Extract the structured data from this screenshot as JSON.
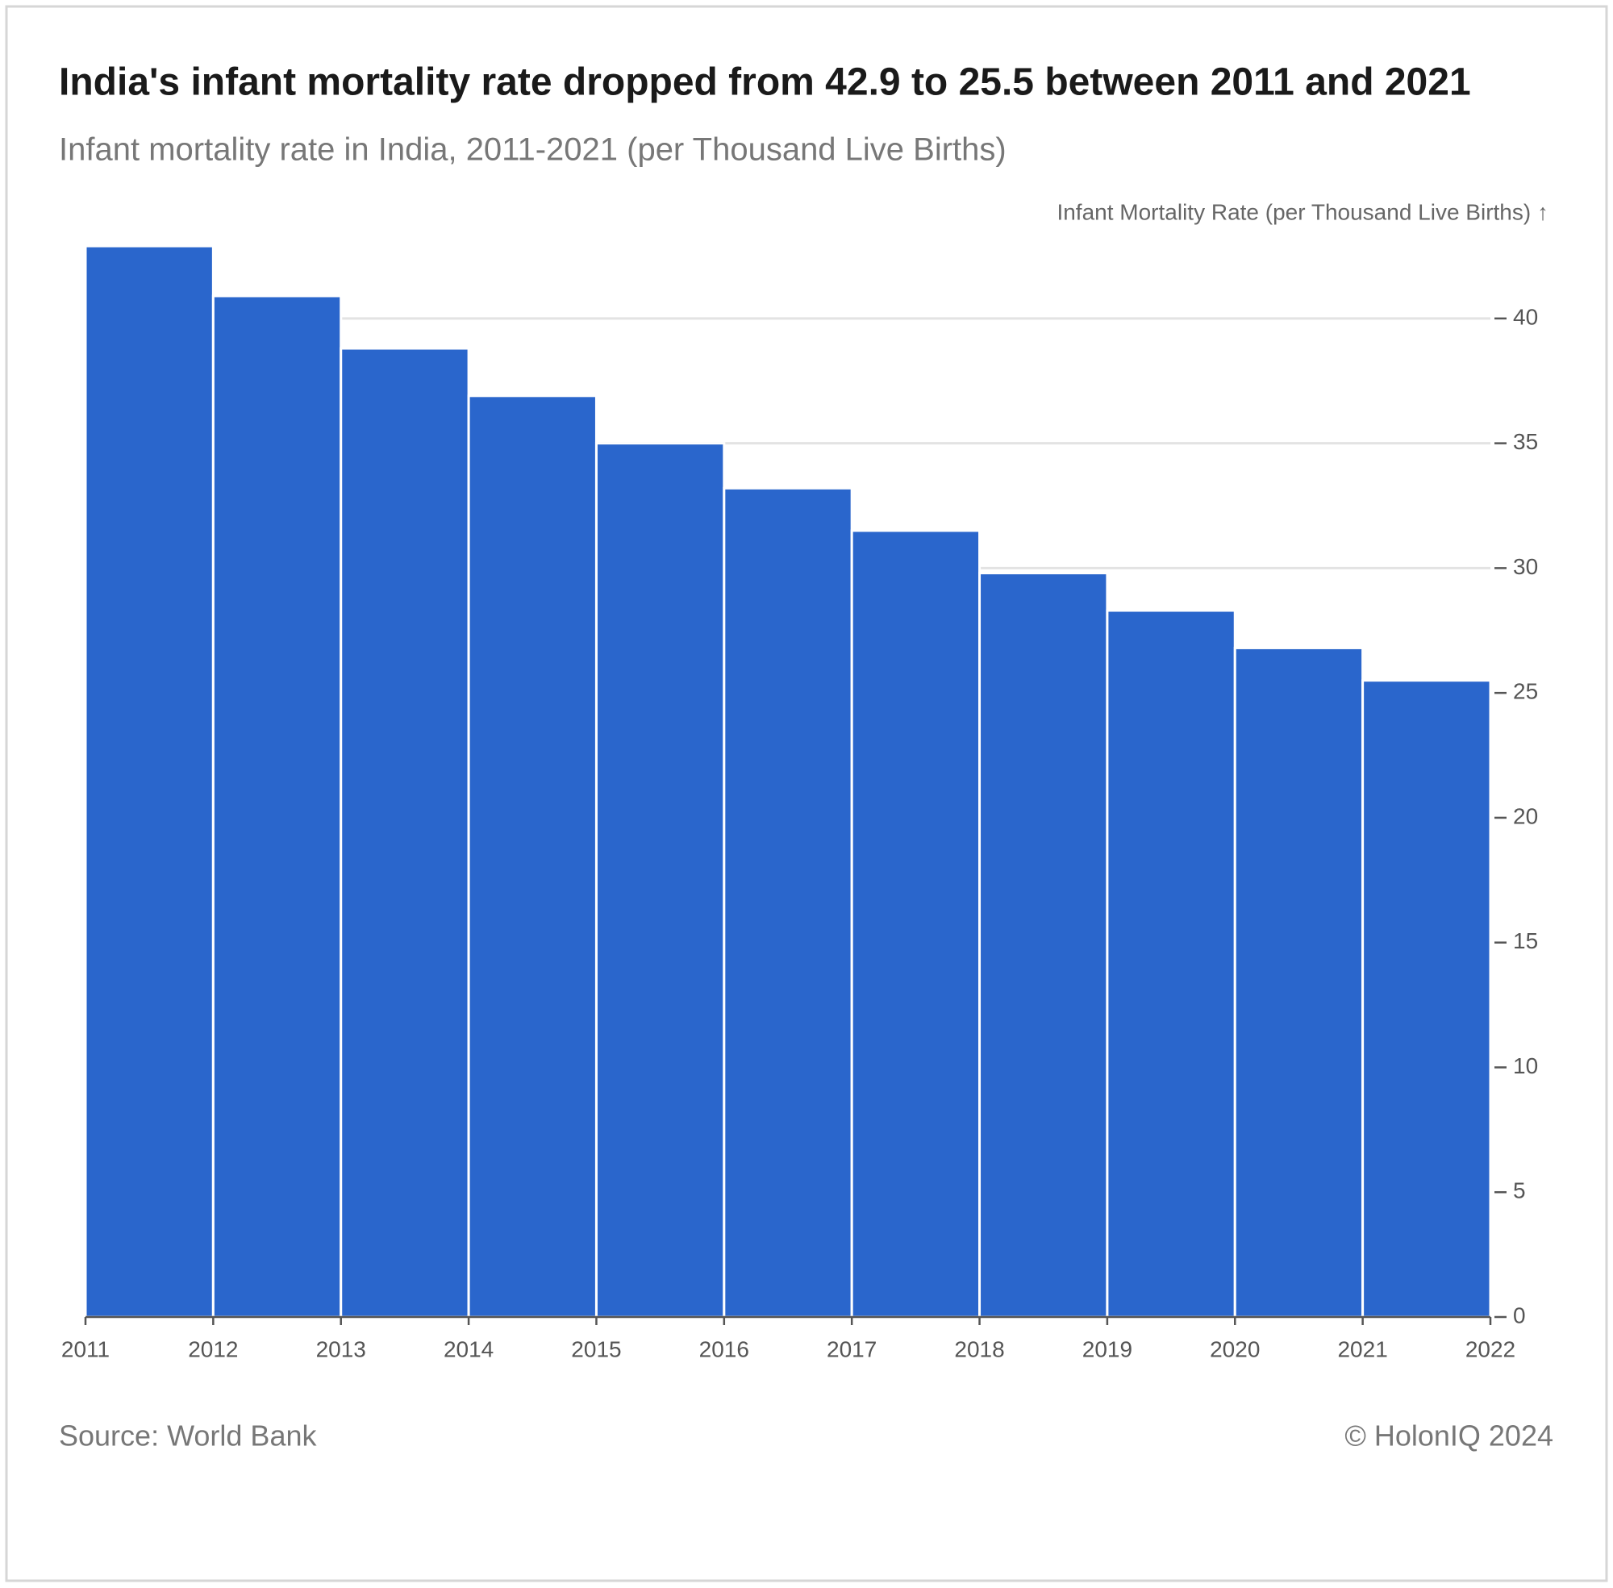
{
  "chart_data": {
    "type": "histogram",
    "title": "India's infant mortality rate dropped from 42.9 to 25.5 between 2011 and 2021",
    "subtitle": "Infant mortality rate in India, 2011-2021 (per Thousand Live Births)",
    "y_label": "Infant Mortality Rate (per Thousand Live Births) ↑",
    "bins": [
      2011,
      2012,
      2013,
      2014,
      2015,
      2016,
      2017,
      2018,
      2019,
      2020,
      2021,
      2022
    ],
    "values": [
      42.9,
      40.9,
      38.8,
      36.9,
      35.0,
      33.2,
      31.5,
      29.8,
      28.3,
      26.8,
      25.5
    ],
    "color": "#2a66cc",
    "xlim": [
      2011,
      2022
    ],
    "xticks": [
      2011,
      2012,
      2013,
      2014,
      2015,
      2016,
      2017,
      2018,
      2019,
      2020,
      2021,
      2022
    ],
    "ylim": [
      0,
      43
    ],
    "yticks": [
      0,
      5,
      10,
      15,
      20,
      25,
      30,
      35,
      40
    ],
    "y_axis_side": "right",
    "grid": true,
    "source": "Source: World Bank",
    "credit": "© HolonIQ 2024"
  }
}
